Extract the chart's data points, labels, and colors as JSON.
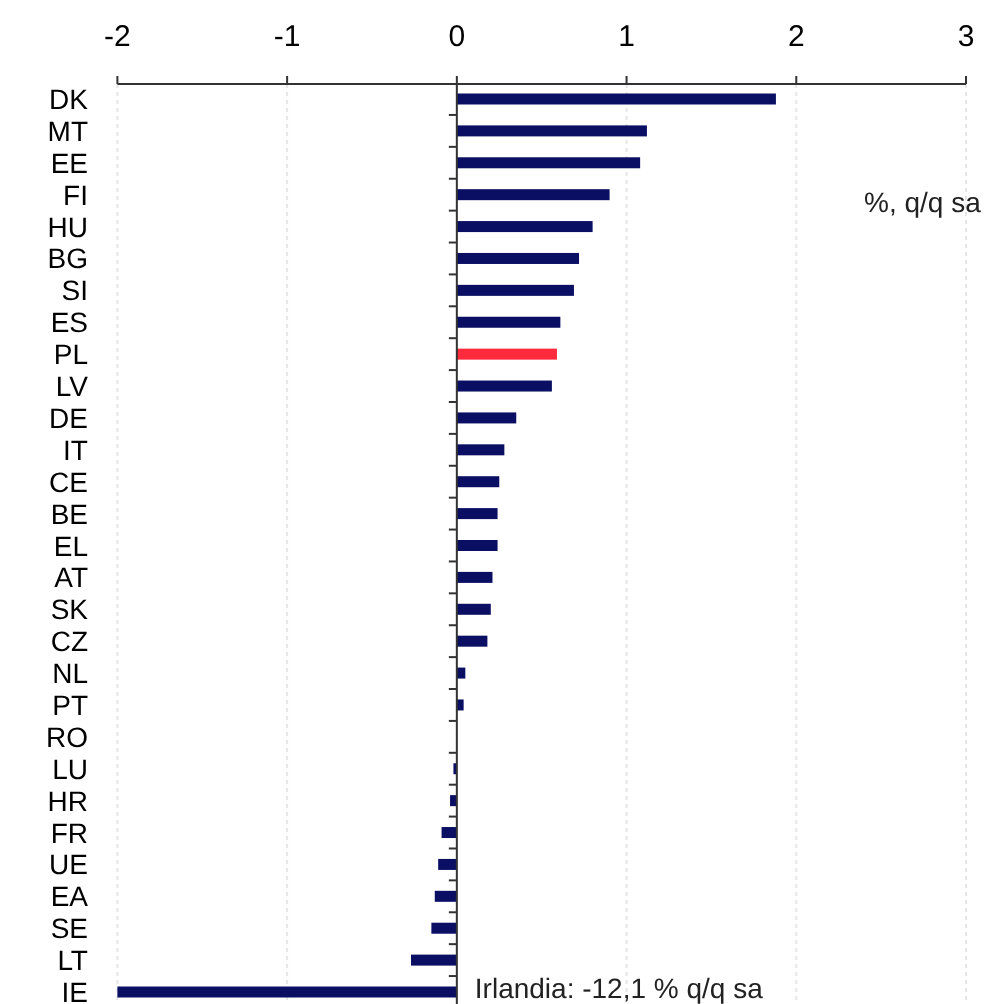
{
  "chart_data": {
    "type": "bar",
    "orientation": "horizontal",
    "categories": [
      "DK",
      "MT",
      "EE",
      "FI",
      "HU",
      "BG",
      "SI",
      "ES",
      "PL",
      "LV",
      "DE",
      "IT",
      "CE",
      "BE",
      "EL",
      "AT",
      "SK",
      "CZ",
      "NL",
      "PT",
      "RO",
      "LU",
      "HR",
      "FR",
      "UE",
      "EA",
      "SE",
      "LT",
      "IE"
    ],
    "values": [
      1.88,
      1.12,
      1.08,
      0.9,
      0.8,
      0.72,
      0.69,
      0.61,
      0.59,
      0.56,
      0.35,
      0.28,
      0.25,
      0.24,
      0.24,
      0.21,
      0.2,
      0.18,
      0.05,
      0.04,
      0,
      -0.02,
      -0.04,
      -0.09,
      -0.11,
      -0.13,
      -0.15,
      -0.27,
      -2
    ],
    "colors": [
      "#0a0f64",
      "#0a0f64",
      "#0a0f64",
      "#0a0f64",
      "#0a0f64",
      "#0a0f64",
      "#0a0f64",
      "#0a0f64",
      "#ff2a3c",
      "#0a0f64",
      "#0a0f64",
      "#0a0f64",
      "#0a0f64",
      "#0a0f64",
      "#0a0f64",
      "#0a0f64",
      "#0a0f64",
      "#0a0f64",
      "#0a0f64",
      "#0a0f64",
      "#0a0f64",
      "#0a0f64",
      "#0a0f64",
      "#0a0f64",
      "#0a0f64",
      "#0a0f64",
      "#0a0f64",
      "#0a0f64",
      "#0a0f64"
    ],
    "xlim": [
      -2,
      3
    ],
    "xticks": [
      -2,
      -1,
      0,
      1,
      2,
      3
    ],
    "grid": "x",
    "annotations": [
      "%, q/q sa",
      "Irlandia: -12,1 % q/q sa"
    ]
  }
}
